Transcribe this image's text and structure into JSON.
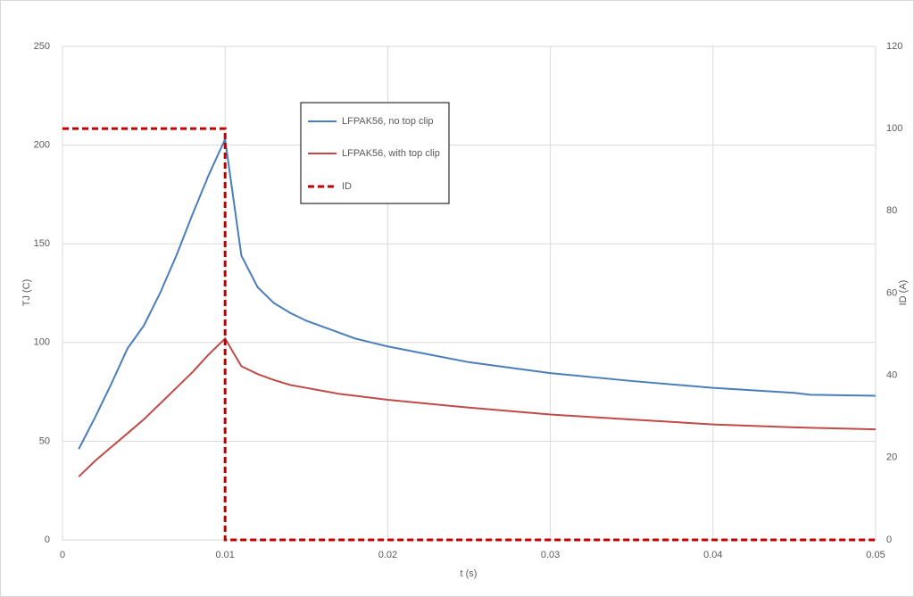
{
  "chart_data": {
    "type": "line",
    "x": [
      0.001,
      0.002,
      0.003,
      0.004,
      0.005,
      0.006,
      0.007,
      0.008,
      0.009,
      0.01,
      0.011,
      0.012,
      0.013,
      0.014,
      0.015,
      0.016,
      0.017,
      0.018,
      0.019,
      0.02,
      0.025,
      0.03,
      0.035,
      0.04,
      0.045,
      0.046,
      0.05
    ],
    "series": [
      {
        "name": "LFPAK56, no top clip",
        "color": "#4a7ebb",
        "values": [
          46,
          62,
          79,
          97,
          108.5,
          125,
          144,
          165,
          185,
          203,
          144,
          128,
          120,
          115,
          111,
          108,
          105,
          102,
          100,
          98,
          90,
          84.5,
          80.5,
          77,
          74.5,
          73.5,
          73
        ]
      },
      {
        "name": "LFPAK56, with top clip",
        "color": "#be4b48",
        "values": [
          32,
          40,
          47,
          54,
          61,
          69,
          77,
          85,
          94,
          102,
          88,
          84,
          81,
          78.5,
          77,
          75.5,
          74,
          73,
          72,
          71,
          67,
          63.5,
          61,
          58.5,
          57,
          56.8,
          56
        ]
      },
      {
        "name": "ID",
        "color": "#c00000",
        "axis": "y2",
        "dashed": true,
        "x": [
          0,
          0.01,
          0.01,
          0.05
        ],
        "values": [
          100,
          100,
          0,
          0
        ]
      }
    ],
    "xlabel": "t (s)",
    "ylabel": "TJ (C)",
    "y2label": "ID (A)",
    "xlim": [
      0,
      0.05
    ],
    "xticks": [
      0,
      0.01,
      0.02,
      0.03,
      0.04,
      0.05
    ],
    "ylim": [
      0,
      250
    ],
    "yticks": [
      0,
      50,
      100,
      150,
      200,
      250
    ],
    "y2lim": [
      0,
      120
    ],
    "y2ticks": [
      0,
      20,
      40,
      60,
      80,
      100,
      120
    ],
    "grid": true
  }
}
